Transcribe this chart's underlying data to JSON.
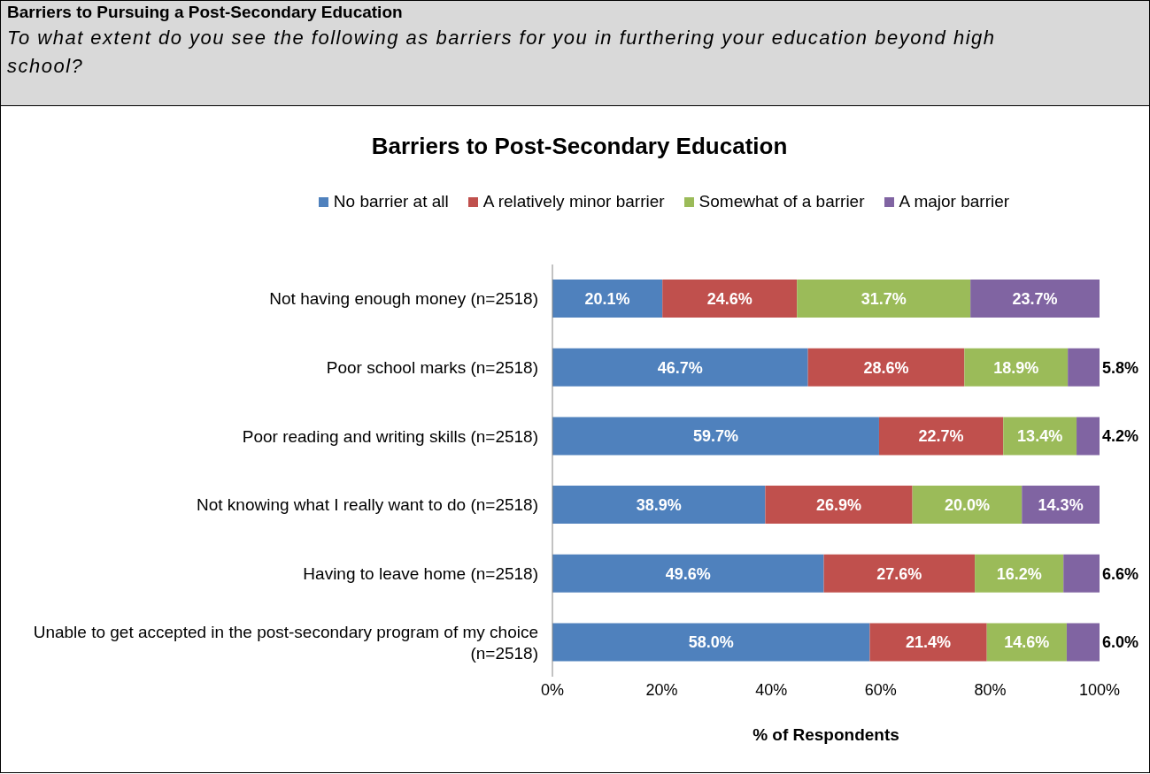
{
  "chart_data": {
    "type": "bar",
    "orientation": "horizontal",
    "stacked": true,
    "title": "Barriers to Pursuing a Post-Secondary Education",
    "subtitle": "To what extent do you see the following as barriers for you in furthering your education beyond high school?",
    "annotations": [
      "Barriers to Post-Secondary Education"
    ],
    "xlabel": "% of Respondents",
    "categories": [
      "Not having enough money (n=2518)",
      "Poor school marks  (n=2518)",
      "Poor reading and writing skills (n=2518)",
      "Not knowing what I really want to do (n=2518)",
      "Having to leave home (n=2518)",
      "Unable to get accepted in the post-secondary program of my choice (n=2518)"
    ],
    "series": [
      {
        "name": "No barrier at all",
        "color": "#4f81bd",
        "values": [
          20.1,
          46.7,
          59.7,
          38.9,
          49.6,
          58.0
        ],
        "value_labels": [
          "20.1%",
          "46.7%",
          "59.7%",
          "38.9%",
          "49.6%",
          "58.0%"
        ]
      },
      {
        "name": "A relatively minor barrier",
        "color": "#c0504d",
        "values": [
          24.6,
          28.6,
          22.7,
          26.9,
          27.6,
          21.4
        ],
        "value_labels": [
          "24.6%",
          "28.6%",
          "22.7%",
          "26.9%",
          "27.6%",
          "21.4%"
        ]
      },
      {
        "name": "Somewhat of a barrier",
        "color": "#9bbb59",
        "values": [
          31.7,
          18.9,
          13.4,
          20.0,
          16.2,
          14.6
        ],
        "value_labels": [
          "31.7%",
          "18.9%",
          "13.4%",
          "20.0%",
          "16.2%",
          "14.6%"
        ]
      },
      {
        "name": "A major barrier",
        "color": "#8064a2",
        "values": [
          23.7,
          5.8,
          4.2,
          14.3,
          6.6,
          6.0
        ],
        "value_labels": [
          "23.7%",
          "5.8%",
          "4.2%",
          "14.3%",
          "6.6%",
          "6.0%"
        ]
      }
    ],
    "xlim": [
      0,
      100
    ],
    "xticks": [
      {
        "value": 0,
        "label": "0%"
      },
      {
        "value": 20,
        "label": "20%"
      },
      {
        "value": 40,
        "label": "40%"
      },
      {
        "value": 60,
        "label": "60%"
      },
      {
        "value": 80,
        "label": "80%"
      },
      {
        "value": 100,
        "label": "100%"
      }
    ],
    "grid": false,
    "legend": "top"
  }
}
